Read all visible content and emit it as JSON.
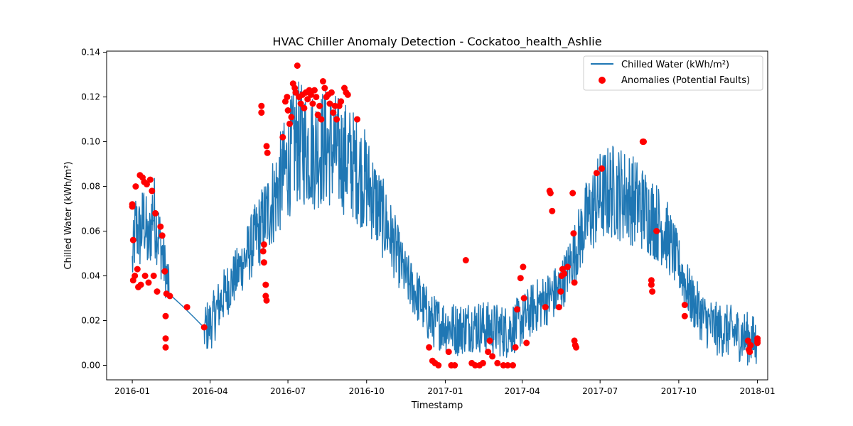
{
  "chart_data": {
    "type": "line",
    "title": "HVAC Chiller Anomaly Detection - Cockatoo_health_Ashlie",
    "xlabel": "Timestamp",
    "ylabel": "Chilled Water (kWh/m²)",
    "x_range": [
      "2015-12-02",
      "2018-01-13"
    ],
    "ylim": [
      -0.0065,
      0.1405
    ],
    "x_ticks": [
      "2016-01",
      "2016-04",
      "2016-07",
      "2016-10",
      "2017-01",
      "2017-04",
      "2017-07",
      "2017-10",
      "2018-01"
    ],
    "y_ticks": [
      0.0,
      0.02,
      0.04,
      0.06,
      0.08,
      0.1,
      0.12,
      0.14
    ],
    "y_tick_labels": [
      "0.00",
      "0.02",
      "0.04",
      "0.06",
      "0.08",
      "0.10",
      "0.12",
      "0.14"
    ],
    "grid": false,
    "legend_position": "top-right",
    "series": [
      {
        "name": "Chilled Water (kWh/m²)",
        "kind": "line",
        "color": "#1f77b4",
        "points": [
          [
            "2016-01-01",
            0.045
          ],
          [
            "2016-01-05",
            0.062
          ],
          [
            "2016-01-10",
            0.058
          ],
          [
            "2016-01-15",
            0.066
          ],
          [
            "2016-01-20",
            0.052
          ],
          [
            "2016-01-25",
            0.07
          ],
          [
            "2016-01-31",
            0.06
          ],
          [
            "2016-02-05",
            0.05
          ],
          [
            "2016-02-10",
            0.04
          ],
          [
            "2016-02-13",
            0.032
          ],
          [
            "2016-03-01",
            0.026
          ],
          [
            "2016-03-25",
            0.017
          ],
          [
            "2016-04-01",
            0.018
          ],
          [
            "2016-04-15",
            0.03
          ],
          [
            "2016-05-01",
            0.04
          ],
          [
            "2016-05-15",
            0.05
          ],
          [
            "2016-06-01",
            0.063
          ],
          [
            "2016-06-15",
            0.075
          ],
          [
            "2016-07-01",
            0.09
          ],
          [
            "2016-07-10",
            0.1
          ],
          [
            "2016-07-20",
            0.098
          ],
          [
            "2016-08-01",
            0.096
          ],
          [
            "2016-08-15",
            0.098
          ],
          [
            "2016-09-01",
            0.094
          ],
          [
            "2016-09-15",
            0.09
          ],
          [
            "2016-10-01",
            0.082
          ],
          [
            "2016-10-15",
            0.07
          ],
          [
            "2016-11-01",
            0.055
          ],
          [
            "2016-11-15",
            0.04
          ],
          [
            "2016-12-01",
            0.03
          ],
          [
            "2016-12-15",
            0.02
          ],
          [
            "2017-01-01",
            0.018
          ],
          [
            "2017-01-15",
            0.016
          ],
          [
            "2017-02-01",
            0.018
          ],
          [
            "2017-02-15",
            0.017
          ],
          [
            "2017-03-01",
            0.016
          ],
          [
            "2017-03-15",
            0.015
          ],
          [
            "2017-04-01",
            0.02
          ],
          [
            "2017-04-15",
            0.026
          ],
          [
            "2017-05-01",
            0.03
          ],
          [
            "2017-05-15",
            0.034
          ],
          [
            "2017-06-01",
            0.05
          ],
          [
            "2017-06-15",
            0.065
          ],
          [
            "2017-07-01",
            0.075
          ],
          [
            "2017-07-15",
            0.078
          ],
          [
            "2017-08-01",
            0.076
          ],
          [
            "2017-08-15",
            0.072
          ],
          [
            "2017-09-01",
            0.066
          ],
          [
            "2017-09-15",
            0.06
          ],
          [
            "2017-10-01",
            0.045
          ],
          [
            "2017-10-15",
            0.03
          ],
          [
            "2017-11-01",
            0.02
          ],
          [
            "2017-11-15",
            0.016
          ],
          [
            "2017-12-01",
            0.015
          ],
          [
            "2017-12-15",
            0.013
          ],
          [
            "2017-12-31",
            0.01
          ]
        ]
      },
      {
        "name": "Anomalies (Potential Faults)",
        "kind": "scatter",
        "color": "#ff0000",
        "points": [
          [
            "2016-01-01",
            0.072
          ],
          [
            "2016-01-01",
            0.071
          ],
          [
            "2016-01-02",
            0.056
          ],
          [
            "2016-01-02",
            0.038
          ],
          [
            "2016-01-04",
            0.04
          ],
          [
            "2016-01-05",
            0.08
          ],
          [
            "2016-01-07",
            0.043
          ],
          [
            "2016-01-08",
            0.035
          ],
          [
            "2016-01-10",
            0.085
          ],
          [
            "2016-01-11",
            0.036
          ],
          [
            "2016-01-13",
            0.084
          ],
          [
            "2016-01-15",
            0.082
          ],
          [
            "2016-01-16",
            0.04
          ],
          [
            "2016-01-18",
            0.081
          ],
          [
            "2016-01-20",
            0.037
          ],
          [
            "2016-01-22",
            0.083
          ],
          [
            "2016-01-24",
            0.078
          ],
          [
            "2016-01-26",
            0.04
          ],
          [
            "2016-01-28",
            0.068
          ],
          [
            "2016-01-30",
            0.033
          ],
          [
            "2016-02-03",
            0.062
          ],
          [
            "2016-02-05",
            0.058
          ],
          [
            "2016-02-08",
            0.042
          ],
          [
            "2016-02-09",
            0.022
          ],
          [
            "2016-02-09",
            0.012
          ],
          [
            "2016-02-09",
            0.008
          ],
          [
            "2016-02-10",
            0.032
          ],
          [
            "2016-02-14",
            0.031
          ],
          [
            "2016-03-05",
            0.026
          ],
          [
            "2016-03-25",
            0.017
          ],
          [
            "2016-05-31",
            0.116
          ],
          [
            "2016-05-31",
            0.113
          ],
          [
            "2016-06-02",
            0.051
          ],
          [
            "2016-06-03",
            0.046
          ],
          [
            "2016-06-03",
            0.054
          ],
          [
            "2016-06-05",
            0.036
          ],
          [
            "2016-06-05",
            0.031
          ],
          [
            "2016-06-06",
            0.029
          ],
          [
            "2016-06-06",
            0.098
          ],
          [
            "2016-06-07",
            0.095
          ],
          [
            "2016-06-25",
            0.102
          ],
          [
            "2016-06-28",
            0.118
          ],
          [
            "2016-06-30",
            0.12
          ],
          [
            "2016-07-01",
            0.114
          ],
          [
            "2016-07-03",
            0.108
          ],
          [
            "2016-07-05",
            0.111
          ],
          [
            "2016-07-07",
            0.126
          ],
          [
            "2016-07-09",
            0.124
          ],
          [
            "2016-07-10",
            0.122
          ],
          [
            "2016-07-12",
            0.134
          ],
          [
            "2016-07-14",
            0.12
          ],
          [
            "2016-07-16",
            0.117
          ],
          [
            "2016-07-18",
            0.121
          ],
          [
            "2016-07-20",
            0.115
          ],
          [
            "2016-07-22",
            0.122
          ],
          [
            "2016-07-24",
            0.119
          ],
          [
            "2016-07-26",
            0.123
          ],
          [
            "2016-07-28",
            0.121
          ],
          [
            "2016-07-30",
            0.117
          ],
          [
            "2016-08-01",
            0.123
          ],
          [
            "2016-08-03",
            0.12
          ],
          [
            "2016-08-05",
            0.112
          ],
          [
            "2016-08-07",
            0.116
          ],
          [
            "2016-08-09",
            0.11
          ],
          [
            "2016-08-11",
            0.127
          ],
          [
            "2016-08-13",
            0.124
          ],
          [
            "2016-08-15",
            0.12
          ],
          [
            "2016-08-17",
            0.121
          ],
          [
            "2016-08-19",
            0.117
          ],
          [
            "2016-08-21",
            0.122
          ],
          [
            "2016-08-23",
            0.113
          ],
          [
            "2016-08-25",
            0.116
          ],
          [
            "2016-08-27",
            0.11
          ],
          [
            "2016-08-30",
            0.116
          ],
          [
            "2016-09-01",
            0.118
          ],
          [
            "2016-09-05",
            0.124
          ],
          [
            "2016-09-07",
            0.122
          ],
          [
            "2016-09-09",
            0.121
          ],
          [
            "2016-09-20",
            0.11
          ],
          [
            "2016-12-13",
            0.008
          ],
          [
            "2016-12-17",
            0.002
          ],
          [
            "2016-12-20",
            0.001
          ],
          [
            "2016-12-24",
            0.0
          ],
          [
            "2017-01-05",
            0.006
          ],
          [
            "2017-01-08",
            0.0
          ],
          [
            "2017-01-12",
            0.0
          ],
          [
            "2017-01-25",
            0.047
          ],
          [
            "2017-02-01",
            0.001
          ],
          [
            "2017-02-05",
            0.0
          ],
          [
            "2017-02-10",
            0.0
          ],
          [
            "2017-02-14",
            0.001
          ],
          [
            "2017-02-20",
            0.006
          ],
          [
            "2017-02-22",
            0.011
          ],
          [
            "2017-02-25",
            0.004
          ],
          [
            "2017-03-03",
            0.001
          ],
          [
            "2017-03-10",
            0.0
          ],
          [
            "2017-03-15",
            0.0
          ],
          [
            "2017-03-21",
            0.0
          ],
          [
            "2017-03-24",
            0.008
          ],
          [
            "2017-03-26",
            0.025
          ],
          [
            "2017-03-30",
            0.039
          ],
          [
            "2017-04-02",
            0.044
          ],
          [
            "2017-04-03",
            0.03
          ],
          [
            "2017-04-06",
            0.01
          ],
          [
            "2017-04-28",
            0.026
          ],
          [
            "2017-05-03",
            0.078
          ],
          [
            "2017-05-04",
            0.077
          ],
          [
            "2017-05-06",
            0.069
          ],
          [
            "2017-05-14",
            0.026
          ],
          [
            "2017-05-16",
            0.033
          ],
          [
            "2017-05-17",
            0.04
          ],
          [
            "2017-05-18",
            0.043
          ],
          [
            "2017-05-20",
            0.041
          ],
          [
            "2017-05-24",
            0.044
          ],
          [
            "2017-05-30",
            0.077
          ],
          [
            "2017-05-31",
            0.059
          ],
          [
            "2017-06-01",
            0.037
          ],
          [
            "2017-06-01",
            0.011
          ],
          [
            "2017-06-02",
            0.009
          ],
          [
            "2017-06-03",
            0.008
          ],
          [
            "2017-06-27",
            0.086
          ],
          [
            "2017-07-03",
            0.088
          ],
          [
            "2017-08-20",
            0.1
          ],
          [
            "2017-08-21",
            0.1
          ],
          [
            "2017-08-30",
            0.038
          ],
          [
            "2017-08-30",
            0.036
          ],
          [
            "2017-08-31",
            0.033
          ],
          [
            "2017-09-05",
            0.06
          ],
          [
            "2017-10-08",
            0.027
          ],
          [
            "2017-10-08",
            0.022
          ],
          [
            "2017-12-21",
            0.011
          ],
          [
            "2017-12-22",
            0.007
          ],
          [
            "2017-12-23",
            0.006
          ],
          [
            "2017-12-24",
            0.009
          ],
          [
            "2018-01-01",
            0.012
          ],
          [
            "2018-01-01",
            0.01
          ],
          [
            "2018-01-01",
            0.011
          ]
        ]
      }
    ]
  }
}
